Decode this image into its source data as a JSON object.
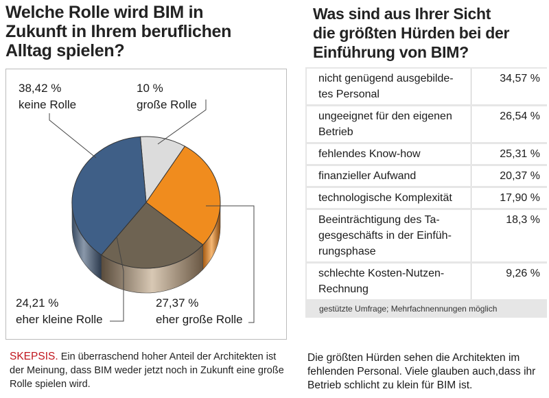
{
  "left": {
    "title": "Welche Rolle wird BIM in\nZukunft in Ihrem beruflichen\nAlltag spielen?",
    "caption_keyword": "SKEPSIS.",
    "caption_text": "Ein überraschend hoher Anteil der Architekten ist der Meinung, dass BIM weder jetzt noch in Zukunft eine große Rolle spielen wird."
  },
  "right": {
    "title": "Was sind aus Ihrer Sicht\ndie größten Hürden bei der\nEinführung von BIM?",
    "note": "gestützte Umfrage; Mehrfachnennungen möglich",
    "caption": "Die größten Hürden sehen die Architekten im fehlenden Personal. Viele glauben auch,dass ihr Betrieb schlicht zu klein für BIM ist."
  },
  "chart_data": [
    {
      "type": "pie",
      "title": "Welche Rolle wird BIM in Zukunft in Ihrem beruflichen Alltag spielen?",
      "slices": [
        {
          "label": "keine Rolle",
          "value": 38.42,
          "value_label": "38,42 %",
          "color": "#3f5f87"
        },
        {
          "label": "große Rolle",
          "value": 10,
          "value_label": "10 %",
          "color": "#dcdcdc"
        },
        {
          "label": "eher große Rolle",
          "value": 27.37,
          "value_label": "27,37 %",
          "color": "#f08c1e"
        },
        {
          "label": "eher kleine Rolle",
          "value": 24.21,
          "value_label": "24,21 %",
          "color": "#6e6352"
        }
      ]
    },
    {
      "type": "table",
      "title": "Was sind aus Ihrer Sicht die größten Hürden bei der Einführung von BIM?",
      "rows": [
        {
          "label": "nicht genügend ausgebilde-\ntes Personal",
          "value": 34.57,
          "value_label": "34,57 %"
        },
        {
          "label": "ungeeignet für den eigenen\nBetrieb",
          "value": 26.54,
          "value_label": "26,54 %"
        },
        {
          "label": "fehlendes Know-how",
          "value": 25.31,
          "value_label": "25,31 %"
        },
        {
          "label": "finanzieller Aufwand",
          "value": 20.37,
          "value_label": "20,37 %"
        },
        {
          "label": "technologische Komplexität",
          "value": 17.9,
          "value_label": "17,90 %"
        },
        {
          "label": "Beeinträchtigung des Ta-\ngesgeschäfts in der Einfüh-\nrungsphase",
          "value": 18.3,
          "value_label": "18,3 %"
        },
        {
          "label": "schlechte Kosten-Nutzen-\nRechnung",
          "value": 9.26,
          "value_label": "9,26 %"
        }
      ]
    }
  ]
}
